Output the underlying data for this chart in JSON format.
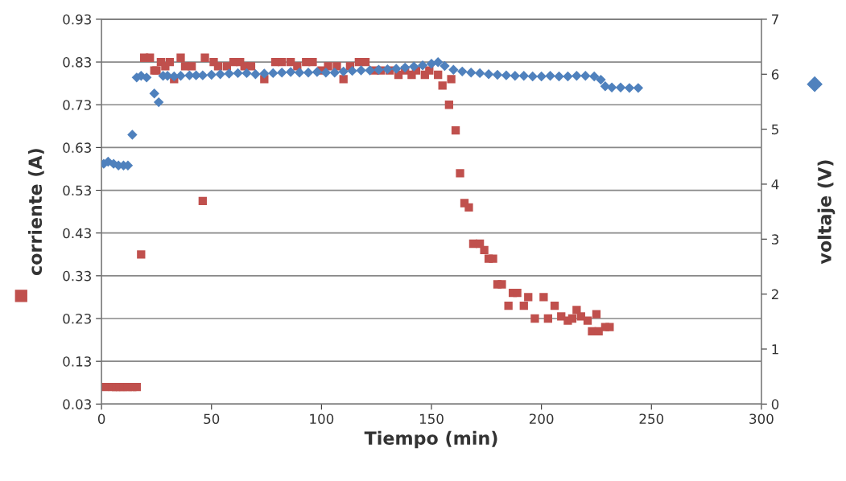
{
  "chart_data": {
    "type": "scatter",
    "xlabel": "Tiempo (min)",
    "ylabel": "corriente (A)",
    "y2label": "voltaje (V)",
    "xlim": [
      0,
      300
    ],
    "xticks": [
      0,
      50,
      100,
      150,
      200,
      250,
      300
    ],
    "ylim": [
      0.03,
      0.93
    ],
    "yticks": [
      0.03,
      0.13,
      0.23,
      0.33,
      0.43,
      0.53,
      0.63,
      0.73,
      0.83,
      0.93
    ],
    "y2lim": [
      0,
      7
    ],
    "y2ticks": [
      0,
      1,
      2,
      3,
      4,
      5,
      6,
      7
    ],
    "grid": "y",
    "legend": false,
    "series": [
      {
        "color": "#c0504d",
        "marker": "square",
        "x": [
          1.5,
          5,
          6.6,
          8.4,
          10,
          12,
          14,
          16,
          18,
          19.4,
          22,
          24,
          25,
          27,
          29,
          31,
          33,
          36,
          38,
          41,
          46,
          47,
          51,
          53,
          57,
          60,
          63,
          65,
          68,
          74,
          79,
          82,
          86,
          89,
          93,
          96,
          100,
          103,
          107,
          110,
          113,
          117,
          120,
          124,
          127,
          131,
          135,
          138,
          141,
          143,
          147,
          149,
          153,
          155,
          158,
          159,
          161,
          163,
          165,
          167,
          169,
          172,
          174,
          176,
          178,
          180,
          182,
          185,
          187,
          189,
          192,
          194,
          197,
          201,
          203,
          206,
          209,
          212,
          214,
          216,
          218,
          221,
          223,
          225,
          226,
          229,
          231
        ],
        "values": [
          0.07,
          0.07,
          0.07,
          0.07,
          0.07,
          0.07,
          0.07,
          0.07,
          0.38,
          0.84,
          0.84,
          0.81,
          0.81,
          0.83,
          0.82,
          0.83,
          0.79,
          0.84,
          0.82,
          0.82,
          0.505,
          0.84,
          0.83,
          0.82,
          0.82,
          0.83,
          0.83,
          0.82,
          0.82,
          0.79,
          0.83,
          0.83,
          0.83,
          0.82,
          0.83,
          0.83,
          0.81,
          0.82,
          0.82,
          0.79,
          0.82,
          0.83,
          0.83,
          0.81,
          0.81,
          0.81,
          0.8,
          0.81,
          0.8,
          0.81,
          0.8,
          0.81,
          0.8,
          0.775,
          0.73,
          0.79,
          0.67,
          0.57,
          0.5,
          0.49,
          0.405,
          0.405,
          0.39,
          0.37,
          0.37,
          0.31,
          0.31,
          0.26,
          0.29,
          0.29,
          0.26,
          0.28,
          0.23,
          0.28,
          0.23,
          0.26,
          0.235,
          0.225,
          0.23,
          0.25,
          0.235,
          0.225,
          0.2,
          0.24,
          0.2,
          0.21,
          0.21
        ]
      },
      {
        "color": "#4f81bd",
        "marker": "diamond",
        "axis": "y2",
        "x": [
          1,
          3,
          5.5,
          7.7,
          10,
          12,
          14,
          16,
          18,
          20.5,
          24,
          26,
          28,
          30,
          33,
          36,
          40,
          43,
          46,
          50,
          54,
          58,
          62,
          66,
          70,
          74,
          78,
          82,
          86,
          90,
          94,
          98,
          102,
          106,
          110,
          114,
          118,
          122,
          126,
          130,
          134,
          138,
          142,
          146,
          150,
          153,
          156,
          160,
          164,
          168,
          172,
          176,
          180,
          184,
          188,
          192,
          196,
          200,
          204,
          208,
          212,
          216,
          220,
          224,
          227,
          229,
          232,
          236,
          240,
          244
        ],
        "values": [
          4.37,
          4.41,
          4.37,
          4.34,
          4.34,
          4.34,
          4.9,
          5.94,
          5.97,
          5.94,
          5.65,
          5.49,
          5.97,
          5.97,
          5.96,
          5.97,
          5.98,
          5.98,
          5.98,
          5.99,
          6.0,
          6.01,
          6.02,
          6.02,
          6.0,
          6.01,
          6.02,
          6.03,
          6.04,
          6.03,
          6.03,
          6.04,
          6.03,
          6.03,
          6.05,
          6.06,
          6.07,
          6.07,
          6.08,
          6.09,
          6.1,
          6.12,
          6.14,
          6.16,
          6.19,
          6.22,
          6.15,
          6.08,
          6.05,
          6.03,
          6.02,
          6.0,
          5.99,
          5.98,
          5.97,
          5.97,
          5.96,
          5.96,
          5.97,
          5.96,
          5.96,
          5.97,
          5.97,
          5.96,
          5.9,
          5.78,
          5.76,
          5.76,
          5.75,
          5.75
        ]
      }
    ]
  }
}
